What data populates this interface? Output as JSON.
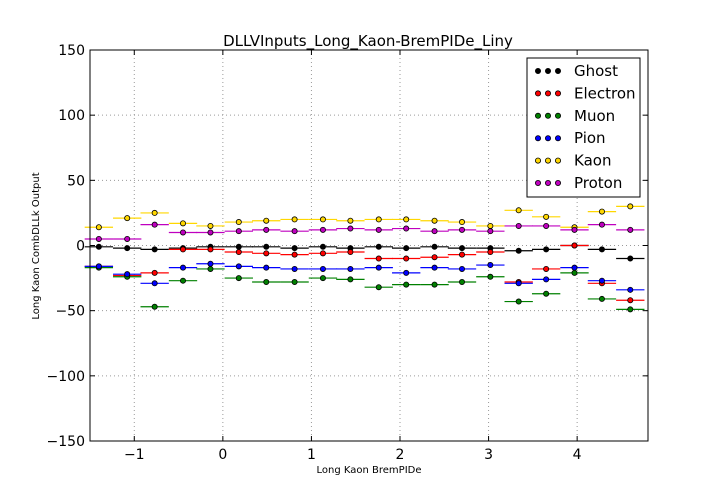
{
  "chart_data": {
    "type": "scatter",
    "title": "DLLVInputs_Long_Kaon-BremPIDe_Liny",
    "xlabel": "Long Kaon BremPIDe",
    "ylabel": "Long Kaon CombDLLk Output",
    "xlim": [
      -1.5,
      4.8
    ],
    "ylim": [
      -150,
      150
    ],
    "xticks": [
      -1,
      0,
      1,
      2,
      3,
      4
    ],
    "yticks": [
      -150,
      -100,
      -50,
      0,
      50,
      100,
      150
    ],
    "grid": true,
    "legend_position": "top-right",
    "bin_centers": [
      -1.4,
      -1.08,
      -0.77,
      -0.45,
      -0.14,
      0.18,
      0.49,
      0.81,
      1.13,
      1.44,
      1.76,
      2.07,
      2.39,
      2.7,
      3.02,
      3.34,
      3.65,
      3.97,
      4.28,
      4.6
    ],
    "bin_half_width": 0.16,
    "series": [
      {
        "name": "Ghost",
        "color": "#000000",
        "values": [
          -1,
          -2,
          -3,
          -2,
          -1,
          -1,
          -1,
          -2,
          -1,
          -2,
          -1,
          -2,
          -1,
          -2,
          -2,
          -4,
          -3,
          0,
          -3,
          -10
        ]
      },
      {
        "name": "Electron",
        "color": "#ff0000",
        "values": [
          -16,
          -23,
          -21,
          -3,
          -3,
          -5,
          -6,
          -7,
          -6,
          -5,
          -10,
          -10,
          -9,
          -7,
          -5,
          -28,
          -18,
          0,
          -29,
          -42
        ]
      },
      {
        "name": "Muon",
        "color": "#008000",
        "values": [
          -17,
          -24,
          -47,
          -27,
          -18,
          -25,
          -28,
          -28,
          -25,
          -26,
          -32,
          -30,
          -30,
          -28,
          -24,
          -43,
          -37,
          -21,
          -41,
          -49
        ]
      },
      {
        "name": "Pion",
        "color": "#0000ff",
        "values": [
          -16,
          -22,
          -29,
          -17,
          -14,
          -16,
          -17,
          -18,
          -18,
          -18,
          -17,
          -21,
          -17,
          -18,
          -15,
          -29,
          -26,
          -17,
          -27,
          -34
        ]
      },
      {
        "name": "Kaon",
        "color": "#ffd700",
        "values": [
          14,
          21,
          25,
          17,
          15,
          18,
          19,
          20,
          20,
          19,
          20,
          20,
          19,
          18,
          15,
          27,
          22,
          14,
          26,
          30
        ]
      },
      {
        "name": "Proton",
        "color": "#bf00bf",
        "values": [
          5,
          5,
          16,
          10,
          10,
          11,
          12,
          11,
          12,
          13,
          12,
          13,
          11,
          12,
          11,
          15,
          15,
          12,
          16,
          12
        ]
      }
    ]
  }
}
